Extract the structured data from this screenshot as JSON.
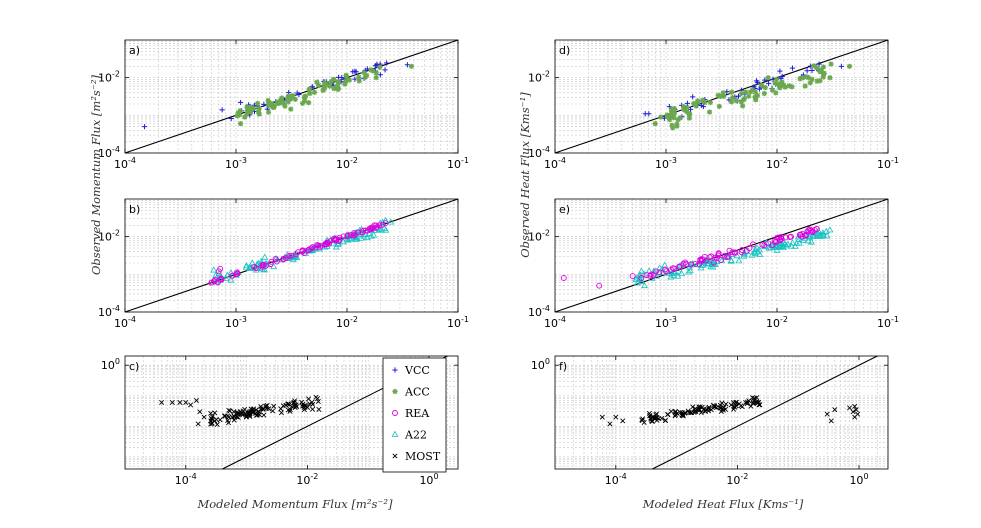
{
  "colors": {
    "VCC": "#1f1fd6",
    "ACC": "#6aa84f",
    "REA": "#e000e0",
    "A22": "#17c1c1",
    "MOST": "#000000"
  },
  "legend": {
    "entries": [
      {
        "key": "VCC",
        "label": "VCC",
        "marker": "plus"
      },
      {
        "key": "ACC",
        "label": "ACC",
        "marker": "asterisk"
      },
      {
        "key": "REA",
        "label": "REA",
        "marker": "circle"
      },
      {
        "key": "A22",
        "label": "A22",
        "marker": "triangle"
      },
      {
        "key": "MOST",
        "label": "MOST",
        "marker": "cross"
      }
    ]
  },
  "axis_labels": {
    "ylabel_left": "Observed Momentum Flux [m²s⁻²]",
    "ylabel_right": "Observed Heat Flux [Kms⁻¹]",
    "xlabel_left": "Modeled Momentum Flux [m²s⁻²]",
    "xlabel_right": "Modeled Heat Flux [Kms⁻¹]"
  },
  "chart_data": [
    {
      "panel": "a)",
      "type": "scatter",
      "xscale": "log",
      "yscale": "log",
      "xlim": [
        0.0001,
        0.1
      ],
      "ylim": [
        0.0001,
        0.1
      ],
      "xticks": [
        {
          "base": "10",
          "exp": "-4",
          "v": 0.0001
        },
        {
          "base": "10",
          "exp": "-3",
          "v": 0.001
        },
        {
          "base": "10",
          "exp": "-2",
          "v": 0.01
        },
        {
          "base": "10",
          "exp": "-1",
          "v": 0.1
        }
      ],
      "yticks": [
        {
          "base": "10",
          "exp": "-4",
          "v": 0.0001
        },
        {
          "base": "10",
          "exp": "-2",
          "v": 0.01
        }
      ],
      "one_to_one": true,
      "series": [
        {
          "name": "VCC",
          "seed": 11,
          "n": 45,
          "xmin": -3.1,
          "xmax": -1.6,
          "slope": 0.95,
          "icpt": -0.1,
          "noise": 0.18,
          "extra": [
            [
              0.00015,
              0.0005
            ],
            [
              0.00075,
              0.0014
            ],
            [
              0.0011,
              0.0022
            ],
            [
              0.0013,
              0.0019
            ],
            [
              0.035,
              0.022
            ]
          ]
        },
        {
          "name": "ACC",
          "seed": 23,
          "n": 90,
          "xmin": -3.0,
          "xmax": -1.7,
          "slope": 0.9,
          "icpt": -0.3,
          "noise": 0.2,
          "extra": [
            [
              0.0011,
              0.0006
            ],
            [
              0.0012,
              0.0009
            ],
            [
              0.038,
              0.02
            ]
          ]
        }
      ]
    },
    {
      "panel": "b)",
      "type": "scatter",
      "xscale": "log",
      "yscale": "log",
      "xlim": [
        0.0001,
        0.1
      ],
      "ylim": [
        0.0001,
        0.1
      ],
      "xticks": [
        {
          "base": "10",
          "exp": "-4",
          "v": 0.0001
        },
        {
          "base": "10",
          "exp": "-3",
          "v": 0.001
        },
        {
          "base": "10",
          "exp": "-2",
          "v": 0.01
        },
        {
          "base": "10",
          "exp": "-1",
          "v": 0.1
        }
      ],
      "yticks": [
        {
          "base": "10",
          "exp": "-4",
          "v": 0.0001
        },
        {
          "base": "10",
          "exp": "-2",
          "v": 0.01
        }
      ],
      "one_to_one": true,
      "series": [
        {
          "name": "A22",
          "seed": 37,
          "n": 110,
          "xmin": -3.2,
          "xmax": -1.6,
          "slope": 0.9,
          "icpt": -0.25,
          "noise": 0.14,
          "extra": [
            [
              0.00063,
              0.0013
            ],
            [
              0.0009,
              0.0011
            ],
            [
              0.0009,
              0.0007
            ]
          ]
        },
        {
          "name": "REA",
          "seed": 41,
          "n": 90,
          "xmin": -3.25,
          "xmax": -1.65,
          "slope": 1.0,
          "icpt": 0.0,
          "noise": 0.05,
          "extra": [
            [
              0.0006,
              0.0006
            ],
            [
              0.0007,
              0.0012
            ],
            [
              0.00072,
              0.0014
            ],
            [
              0.001,
              0.001
            ]
          ]
        }
      ]
    },
    {
      "panel": "c)",
      "type": "scatter",
      "xscale": "log",
      "yscale": "log",
      "xlim": [
        1e-05,
        3
      ],
      "ylim": [
        0.0004,
        2
      ],
      "xticks": [
        {
          "base": "10",
          "exp": "-4",
          "v": 0.0001
        },
        {
          "base": "10",
          "exp": "-2",
          "v": 0.01
        },
        {
          "base": "10",
          "exp": "0",
          "v": 1
        }
      ],
      "yticks": [
        {
          "base": "10",
          "exp": "0",
          "v": 1
        }
      ],
      "one_to_one": true,
      "series": [
        {
          "name": "MOST",
          "seed": 53,
          "n": 110,
          "xmin": -3.6,
          "xmax": -1.8,
          "slope": 0.33,
          "icpt": -0.6,
          "noise": 0.18,
          "extra": [
            [
              4e-05,
              0.06
            ],
            [
              6e-05,
              0.06
            ],
            [
              8e-05,
              0.06
            ],
            [
              0.0001,
              0.06
            ],
            [
              0.00012,
              0.05
            ],
            [
              0.00015,
              0.07
            ],
            [
              0.00017,
              0.03
            ],
            [
              0.0002,
              0.02
            ],
            [
              0.00016,
              0.012
            ],
            [
              0.0003,
              0.015
            ]
          ]
        }
      ]
    },
    {
      "panel": "d)",
      "type": "scatter",
      "xscale": "log",
      "yscale": "log",
      "xlim": [
        0.0001,
        0.1
      ],
      "ylim": [
        0.0001,
        0.1
      ],
      "xticks": [
        {
          "base": "10",
          "exp": "-4",
          "v": 0.0001
        },
        {
          "base": "10",
          "exp": "-3",
          "v": 0.001
        },
        {
          "base": "10",
          "exp": "-2",
          "v": 0.01
        },
        {
          "base": "10",
          "exp": "-1",
          "v": 0.1
        }
      ],
      "yticks": [
        {
          "base": "10",
          "exp": "-4",
          "v": 0.0001
        },
        {
          "base": "10",
          "exp": "-2",
          "v": 0.01
        }
      ],
      "one_to_one": true,
      "series": [
        {
          "name": "VCC",
          "seed": 61,
          "n": 45,
          "xmin": -3.05,
          "xmax": -1.6,
          "slope": 0.92,
          "icpt": -0.25,
          "noise": 0.22,
          "extra": [
            [
              0.00065,
              0.0011
            ],
            [
              0.0007,
              0.0011
            ],
            [
              0.0011,
              0.0009
            ],
            [
              0.038,
              0.02
            ]
          ]
        },
        {
          "name": "ACC",
          "seed": 67,
          "n": 95,
          "xmin": -3.0,
          "xmax": -1.5,
          "slope": 0.88,
          "icpt": -0.45,
          "noise": 0.24,
          "extra": [
            [
              0.0008,
              0.0006
            ],
            [
              0.0009,
              0.0009
            ],
            [
              0.045,
              0.02
            ],
            [
              0.03,
              0.01
            ]
          ]
        }
      ]
    },
    {
      "panel": "e)",
      "type": "scatter",
      "xscale": "log",
      "yscale": "log",
      "xlim": [
        0.0001,
        0.1
      ],
      "ylim": [
        0.0001,
        0.1
      ],
      "xticks": [
        {
          "base": "10",
          "exp": "-4",
          "v": 0.0001
        },
        {
          "base": "10",
          "exp": "-3",
          "v": 0.001
        },
        {
          "base": "10",
          "exp": "-2",
          "v": 0.01
        },
        {
          "base": "10",
          "exp": "-1",
          "v": 0.1
        }
      ],
      "yticks": [
        {
          "base": "10",
          "exp": "-4",
          "v": 0.0001
        },
        {
          "base": "10",
          "exp": "-2",
          "v": 0.01
        }
      ],
      "one_to_one": true,
      "series": [
        {
          "name": "A22",
          "seed": 71,
          "n": 130,
          "xmin": -3.3,
          "xmax": -1.5,
          "slope": 0.72,
          "icpt": -0.8,
          "noise": 0.16,
          "extra": [
            [
              0.00055,
              0.0008
            ],
            [
              0.0006,
              0.0012
            ],
            [
              0.03,
              0.015
            ]
          ]
        },
        {
          "name": "REA",
          "seed": 79,
          "n": 80,
          "xmin": -3.2,
          "xmax": -1.6,
          "slope": 0.78,
          "icpt": -0.55,
          "noise": 0.09,
          "extra": [
            [
              0.00012,
              0.0008
            ],
            [
              0.00025,
              0.0005
            ],
            [
              0.0005,
              0.0009
            ],
            [
              0.0006,
              0.0008
            ]
          ]
        }
      ]
    },
    {
      "panel": "f)",
      "type": "scatter",
      "xscale": "log",
      "yscale": "log",
      "xlim": [
        1e-05,
        3
      ],
      "ylim": [
        0.0004,
        2
      ],
      "xticks": [
        {
          "base": "10",
          "exp": "-4",
          "v": 0.0001
        },
        {
          "base": "10",
          "exp": "-2",
          "v": 0.01
        },
        {
          "base": "10",
          "exp": "0",
          "v": 1
        }
      ],
      "yticks": [
        {
          "base": "10",
          "exp": "0",
          "v": 1
        }
      ],
      "one_to_one": true,
      "series": [
        {
          "name": "MOST",
          "seed": 83,
          "n": 110,
          "xmin": -3.6,
          "xmax": -1.6,
          "slope": 0.33,
          "icpt": -0.62,
          "noise": 0.16,
          "extra": [
            [
              6e-05,
              0.02
            ],
            [
              8e-05,
              0.012
            ],
            [
              0.0001,
              0.02
            ],
            [
              0.00013,
              0.015
            ],
            [
              0.3,
              0.025
            ],
            [
              0.35,
              0.015
            ],
            [
              0.4,
              0.035
            ],
            [
              0.7,
              0.04
            ],
            [
              0.8,
              0.03
            ],
            [
              0.85,
              0.045
            ],
            [
              0.9,
              0.035
            ],
            [
              0.95,
              0.025
            ],
            [
              0.85,
              0.02
            ]
          ]
        }
      ]
    }
  ]
}
